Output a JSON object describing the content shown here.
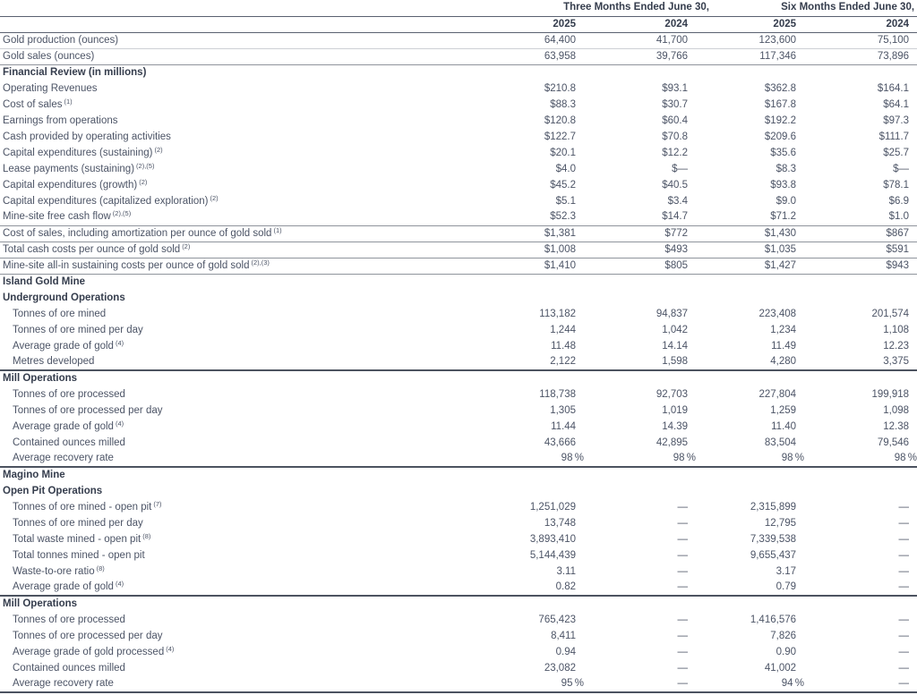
{
  "page": {
    "background": "#ffffff",
    "text_color": "#4c5466",
    "header_color": "#353d4d",
    "rule_light": "#cdd0d5",
    "rule_medium": "#8f949c",
    "rule_dark": "#4c5360"
  },
  "table": {
    "column_groups": [
      {
        "label": "Three Months Ended June 30,"
      },
      {
        "label": "Six Months Ended June 30,"
      }
    ],
    "year_headers": [
      "2025",
      "2024",
      "2025",
      "2024"
    ],
    "rows": [
      {
        "type": "data",
        "label": "Gold production (ounces)",
        "sup": "",
        "indent": false,
        "values": [
          "64,400",
          "41,700",
          "123,600",
          "75,100"
        ],
        "border": "light"
      },
      {
        "type": "data",
        "label": "Gold sales (ounces)",
        "sup": "",
        "indent": false,
        "values": [
          "63,958",
          "39,766",
          "117,346",
          "73,896"
        ],
        "border": "med"
      },
      {
        "type": "section",
        "label": "Financial Review (in millions)",
        "border": "none"
      },
      {
        "type": "data",
        "label": "Operating Revenues",
        "sup": "",
        "indent": false,
        "values": [
          "$210.8",
          "$93.1",
          "$362.8",
          "$164.1"
        ],
        "border": "none"
      },
      {
        "type": "data",
        "label": "Cost of sales",
        "sup": "(1)",
        "indent": false,
        "values": [
          "$88.3",
          "$30.7",
          "$167.8",
          "$64.1"
        ],
        "border": "none"
      },
      {
        "type": "data",
        "label": "Earnings from operations",
        "sup": "",
        "indent": false,
        "values": [
          "$120.8",
          "$60.4",
          "$192.2",
          "$97.3"
        ],
        "border": "none"
      },
      {
        "type": "data",
        "label": "Cash provided by operating activities",
        "sup": "",
        "indent": false,
        "values": [
          "$122.7",
          "$70.8",
          "$209.6",
          "$111.7"
        ],
        "border": "none"
      },
      {
        "type": "data",
        "label": "Capital expenditures (sustaining)",
        "sup": "(2)",
        "indent": false,
        "values": [
          "$20.1",
          "$12.2",
          "$35.6",
          "$25.7"
        ],
        "border": "none"
      },
      {
        "type": "data",
        "label": "Lease payments (sustaining)",
        "sup": "(2),(5)",
        "indent": false,
        "values": [
          "$4.0",
          "$—",
          "$8.3",
          "$—"
        ],
        "border": "none"
      },
      {
        "type": "data",
        "label": "Capital expenditures (growth)",
        "sup": "(2)",
        "indent": false,
        "values": [
          "$45.2",
          "$40.5",
          "$93.8",
          "$78.1"
        ],
        "border": "none"
      },
      {
        "type": "data",
        "label": "Capital expenditures (capitalized exploration)",
        "sup": "(2)",
        "indent": false,
        "values": [
          "$5.1",
          "$3.4",
          "$9.0",
          "$6.9"
        ],
        "border": "none"
      },
      {
        "type": "data",
        "label": "Mine-site free cash flow",
        "sup": "(2),(5)",
        "indent": false,
        "values": [
          "$52.3",
          "$14.7",
          "$71.2",
          "$1.0"
        ],
        "border": "med"
      },
      {
        "type": "data",
        "label": "Cost of sales, including amortization per ounce of gold sold",
        "sup": "(1)",
        "indent": false,
        "values": [
          "$1,381",
          "$772",
          "$1,430",
          "$867"
        ],
        "border": "med"
      },
      {
        "type": "data",
        "label": "Total cash costs per ounce of gold sold",
        "sup": "(2)",
        "indent": false,
        "values": [
          "$1,008",
          "$493",
          "$1,035",
          "$591"
        ],
        "border": "med"
      },
      {
        "type": "data",
        "label": "Mine-site all-in sustaining costs per ounce of gold sold",
        "sup": "(2),(3)",
        "indent": false,
        "values": [
          "$1,410",
          "$805",
          "$1,427",
          "$943"
        ],
        "border": "med"
      },
      {
        "type": "section",
        "label": "Island Gold Mine",
        "border": "none"
      },
      {
        "type": "section",
        "label": "Underground Operations",
        "border": "none"
      },
      {
        "type": "data",
        "label": "Tonnes of ore mined",
        "sup": "",
        "indent": true,
        "values": [
          "113,182",
          "94,837",
          "223,408",
          "201,574"
        ],
        "border": "none"
      },
      {
        "type": "data",
        "label": "Tonnes of ore mined per day",
        "sup": "",
        "indent": true,
        "values": [
          "1,244",
          "1,042",
          "1,234",
          "1,108"
        ],
        "border": "none"
      },
      {
        "type": "data",
        "label": "Average grade of gold",
        "sup": "(4)",
        "indent": true,
        "values": [
          "11.48",
          "14.14",
          "11.49",
          "12.23"
        ],
        "border": "none"
      },
      {
        "type": "data",
        "label": "Metres developed",
        "sup": "",
        "indent": true,
        "values": [
          "2,122",
          "1,598",
          "4,280",
          "3,375"
        ],
        "border": "dark"
      },
      {
        "type": "section",
        "label": "Mill Operations",
        "border": "none"
      },
      {
        "type": "data",
        "label": "Tonnes of ore processed",
        "sup": "",
        "indent": true,
        "values": [
          "118,738",
          "92,703",
          "227,804",
          "199,918"
        ],
        "border": "none"
      },
      {
        "type": "data",
        "label": "Tonnes of ore processed per day",
        "sup": "",
        "indent": true,
        "values": [
          "1,305",
          "1,019",
          "1,259",
          "1,098"
        ],
        "border": "none"
      },
      {
        "type": "data",
        "label": "Average grade of gold",
        "sup": "(4)",
        "indent": true,
        "values": [
          "11.44",
          "14.39",
          "11.40",
          "12.38"
        ],
        "border": "none"
      },
      {
        "type": "data",
        "label": "Contained ounces milled",
        "sup": "",
        "indent": true,
        "values": [
          "43,666",
          "42,895",
          "83,504",
          "79,546"
        ],
        "border": "none"
      },
      {
        "type": "data",
        "label": "Average recovery rate",
        "sup": "",
        "indent": true,
        "values": [
          "98%",
          "98%",
          "98%",
          "98%"
        ],
        "border": "dark"
      },
      {
        "type": "section",
        "label": "Magino Mine",
        "border": "none"
      },
      {
        "type": "section",
        "label": "Open Pit Operations",
        "border": "none"
      },
      {
        "type": "data",
        "label": "Tonnes of ore mined - open pit",
        "sup": "(7)",
        "indent": true,
        "values": [
          "1,251,029",
          "—",
          "2,315,899",
          "—"
        ],
        "border": "none"
      },
      {
        "type": "data",
        "label": "Tonnes of ore mined per day",
        "sup": "",
        "indent": true,
        "values": [
          "13,748",
          "—",
          "12,795",
          "—"
        ],
        "border": "none"
      },
      {
        "type": "data",
        "label": "Total waste mined - open pit",
        "sup": "(8)",
        "indent": true,
        "values": [
          "3,893,410",
          "—",
          "7,339,538",
          "—"
        ],
        "border": "none"
      },
      {
        "type": "data",
        "label": "Total tonnes mined - open pit",
        "sup": "",
        "indent": true,
        "values": [
          "5,144,439",
          "—",
          "9,655,437",
          "—"
        ],
        "border": "none"
      },
      {
        "type": "data",
        "label": "Waste-to-ore ratio",
        "sup": "(8)",
        "indent": true,
        "values": [
          "3.11",
          "—",
          "3.17",
          "—"
        ],
        "border": "none"
      },
      {
        "type": "data",
        "label": "Average grade of gold",
        "sup": "(4)",
        "indent": true,
        "values": [
          "0.82",
          "—",
          "0.79",
          "—"
        ],
        "border": "dark"
      },
      {
        "type": "section",
        "label": "Mill Operations",
        "border": "none"
      },
      {
        "type": "data",
        "label": "Tonnes of ore processed",
        "sup": "",
        "indent": true,
        "values": [
          "765,423",
          "—",
          "1,416,576",
          "—"
        ],
        "border": "none"
      },
      {
        "type": "data",
        "label": "Tonnes of ore processed per day",
        "sup": "",
        "indent": true,
        "values": [
          "8,411",
          "—",
          "7,826",
          "—"
        ],
        "border": "none"
      },
      {
        "type": "data",
        "label": "Average grade of gold processed",
        "sup": "(4)",
        "indent": true,
        "values": [
          "0.94",
          "—",
          "0.90",
          "—"
        ],
        "border": "none"
      },
      {
        "type": "data",
        "label": "Contained ounces milled",
        "sup": "",
        "indent": true,
        "values": [
          "23,082",
          "—",
          "41,002",
          "—"
        ],
        "border": "none"
      },
      {
        "type": "data",
        "label": "Average recovery rate",
        "sup": "",
        "indent": true,
        "values": [
          "95%",
          "—",
          "94%",
          "—"
        ],
        "border": "dark"
      }
    ]
  }
}
